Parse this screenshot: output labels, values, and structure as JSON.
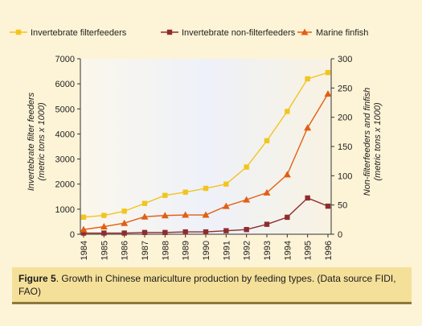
{
  "colors": {
    "filter": "#f2c51e",
    "nonfilter": "#8e2d2d",
    "finfish": "#e25f12",
    "plot_bg": "#eef1f9",
    "panel_bg": "#fdf3d6",
    "caption_bg": "#f5e09a"
  },
  "caption": {
    "label": "Figure 5",
    "text": ". Growth in Chinese mariculture production by feeding types. (Data source FIDI, FAO)"
  },
  "chart_data": {
    "type": "line",
    "title": "",
    "x": [
      "1984",
      "1985",
      "1986",
      "1987",
      "1988",
      "1989",
      "1990",
      "1991",
      "1992",
      "1993",
      "1994",
      "1995",
      "1996"
    ],
    "ylabel_left": "Invertebrate filter feeders\n(metric tons x 1000)",
    "ylabel_right": "Non-filterfeeders and finfish\n(metric tons x 1000)",
    "ylim_left": [
      0,
      7000
    ],
    "ylim_right": [
      0,
      300
    ],
    "yticks_left": [
      "0",
      "1000",
      "2000",
      "3000",
      "4000",
      "5000",
      "6000",
      "7000"
    ],
    "yticks_right": [
      "0",
      "50",
      "100",
      "150",
      "200",
      "250",
      "300"
    ],
    "grid": false,
    "legend_position": "top",
    "series": [
      {
        "name": "Invertebrate  filterfeeders",
        "axis": "left",
        "marker": "square",
        "color": "#f2c51e",
        "values": [
          680,
          750,
          920,
          1230,
          1550,
          1680,
          1830,
          2000,
          2680,
          3730,
          4900,
          6200,
          6450
        ]
      },
      {
        "name": "Invertebrate non-filterfeeders",
        "axis": "right",
        "marker": "square",
        "color": "#8e2d2d",
        "values": [
          2,
          2,
          2,
          3,
          3,
          4,
          4,
          6,
          8,
          17,
          29,
          62,
          48
        ]
      },
      {
        "name": "Marine finfish",
        "axis": "right",
        "marker": "triangle",
        "color": "#e25f12",
        "values": [
          8,
          13,
          19,
          30,
          32,
          33,
          33,
          48,
          59,
          71,
          102,
          182,
          240
        ]
      }
    ]
  }
}
